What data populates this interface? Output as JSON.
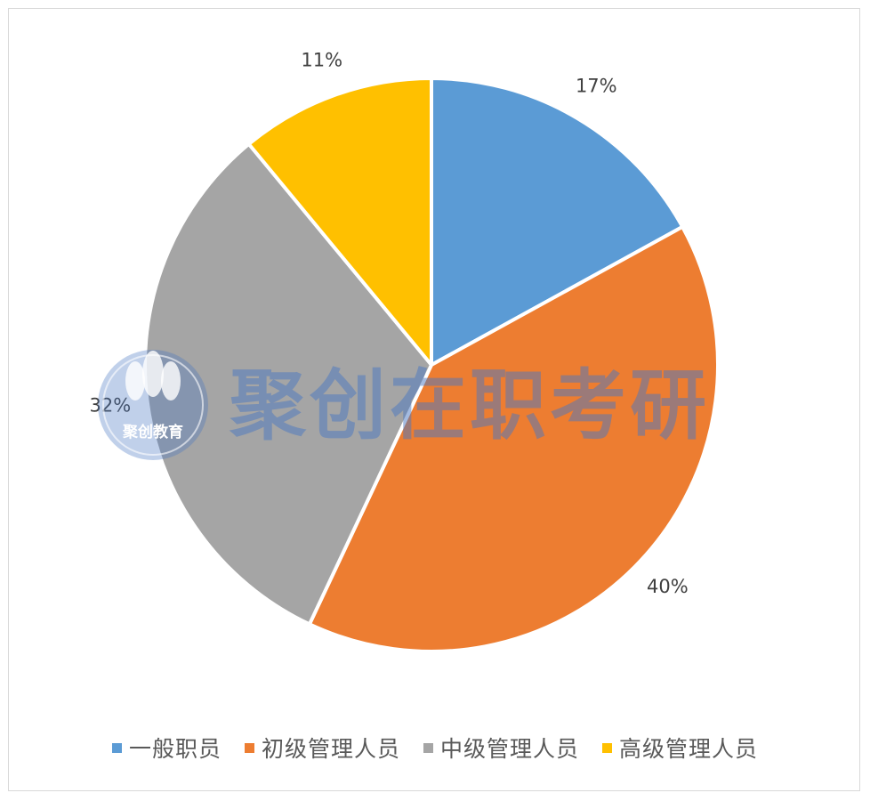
{
  "chart_data": {
    "type": "pie",
    "categories": [
      "一般职员",
      "初级管理人员",
      "中级管理人员",
      "高级管理人员"
    ],
    "values": [
      17,
      40,
      32,
      11
    ],
    "labels": [
      "17%",
      "40%",
      "32%",
      "11%"
    ],
    "colors": [
      "#5b9bd5",
      "#ed7d31",
      "#a5a5a5",
      "#ffc000"
    ],
    "start_angle_deg": 0,
    "direction": "clockwise",
    "legend_position": "bottom"
  },
  "legend": {
    "items": [
      {
        "label": "一般职员",
        "color": "#5b9bd5"
      },
      {
        "label": "初级管理人员",
        "color": "#ed7d31"
      },
      {
        "label": "中级管理人员",
        "color": "#a5a5a5"
      },
      {
        "label": "高级管理人员",
        "color": "#ffc000"
      }
    ]
  },
  "watermark": {
    "text": "聚创在职考研",
    "logo_text": "聚创教育",
    "color": "#4a78c2"
  }
}
